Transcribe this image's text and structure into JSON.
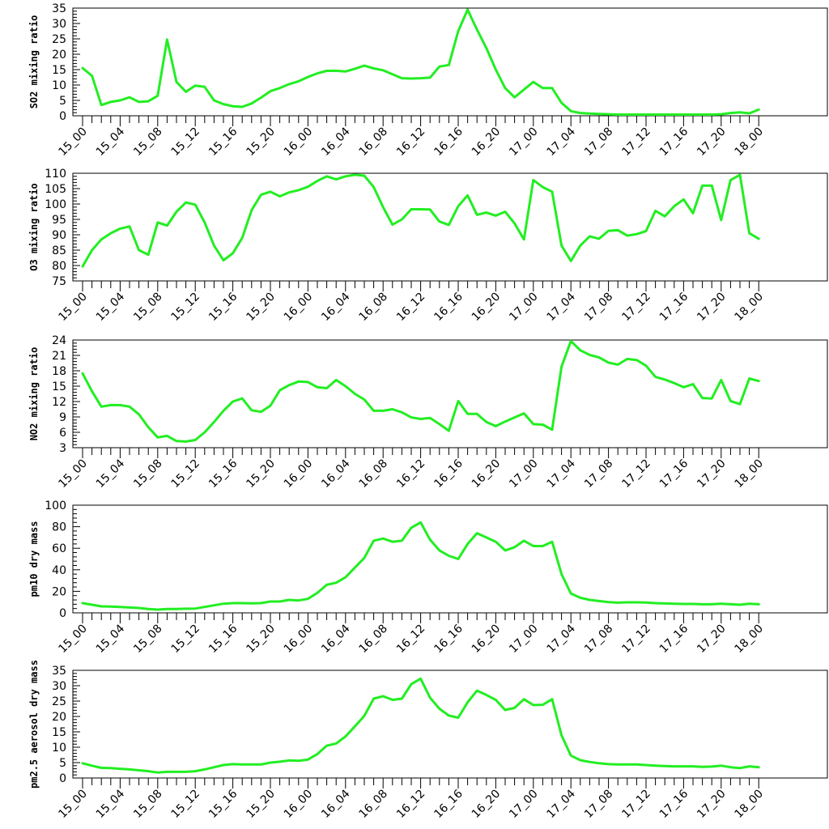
{
  "colors": {
    "series": "#22ee22",
    "axis": "#000000",
    "background": "#ffffff"
  },
  "chart_data": [
    {
      "type": "line",
      "ylabel": "SO2 mixing ratio",
      "ylim": [
        0,
        35
      ],
      "yticks": [
        0,
        5,
        10,
        15,
        20,
        25,
        30,
        35
      ],
      "xtick_labels": [
        "15_00",
        "15_04",
        "15_08",
        "15_12",
        "15_16",
        "15_20",
        "16_00",
        "16_04",
        "16_08",
        "16_12",
        "16_16",
        "16_20",
        "17_00",
        "17_04",
        "17_08",
        "17_12",
        "17_16",
        "17_20",
        "18_00"
      ],
      "values": [
        15.5,
        13,
        3.5,
        4.5,
        5,
        6,
        4.5,
        4.7,
        6.5,
        24.8,
        11,
        7.8,
        9.8,
        9.4,
        5,
        3.8,
        3.1,
        2.9,
        4,
        5.9,
        8,
        9,
        10.3,
        11.2,
        12.6,
        13.8,
        14.6,
        14.6,
        14.4,
        15.3,
        16.3,
        15.4,
        14.8,
        13.5,
        12.2,
        12.1,
        12.2,
        12.4,
        16,
        16.5,
        27.5,
        34.5,
        28,
        22,
        15,
        9,
        6,
        8.5,
        11,
        9,
        9,
        4.2,
        1.5,
        0.9,
        0.7,
        0.6,
        0.5,
        0.4,
        0.4,
        0.4,
        0.4,
        0.4,
        0.4,
        0.4,
        0.4,
        0.4,
        0.4,
        0.4,
        0.5,
        0.9,
        1.1,
        0.8,
        2
      ]
    },
    {
      "type": "line",
      "ylabel": "O3 mixing ratio",
      "ylim": [
        75,
        110
      ],
      "yticks": [
        75,
        80,
        85,
        90,
        95,
        100,
        105,
        110
      ],
      "xtick_labels": [
        "15_00",
        "15_04",
        "15_08",
        "15_12",
        "15_16",
        "15_20",
        "16_00",
        "16_04",
        "16_08",
        "16_12",
        "16_16",
        "16_20",
        "17_00",
        "17_04",
        "17_08",
        "17_12",
        "17_16",
        "17_20",
        "18_00"
      ],
      "values": [
        79.7,
        85,
        88.5,
        90.5,
        92,
        92.7,
        85,
        83.5,
        94,
        93,
        97.5,
        100.5,
        99.8,
        94,
        86.5,
        81.7,
        84,
        89,
        98,
        103,
        104,
        102.5,
        103.8,
        104.5,
        105.6,
        107.5,
        109,
        108,
        109,
        109.5,
        109.2,
        105.5,
        99,
        93.3,
        95,
        98.3,
        98.3,
        98.2,
        94.3,
        93.2,
        99.3,
        102.8,
        96.5,
        97.2,
        96.2,
        97.5,
        93.7,
        88.5,
        107.8,
        105.5,
        104,
        86.5,
        81.5,
        86.5,
        89.5,
        88.7,
        91.3,
        91.5,
        89.7,
        90.2,
        91.2,
        97.8,
        96,
        99.3,
        101.5,
        97,
        106,
        106,
        94.8,
        107.8,
        109.5,
        90.5,
        88.7
      ]
    },
    {
      "type": "line",
      "ylabel": "NO2 mixing ratio",
      "ylim": [
        3,
        24
      ],
      "yticks": [
        3,
        6,
        9,
        12,
        15,
        18,
        21,
        24
      ],
      "xtick_labels": [
        "15_00",
        "15_04",
        "15_08",
        "15_12",
        "15_16",
        "15_20",
        "16_00",
        "16_04",
        "16_08",
        "16_12",
        "16_16",
        "16_20",
        "17_00",
        "17_04",
        "17_08",
        "17_12",
        "17_16",
        "17_20",
        "18_00"
      ],
      "values": [
        17.5,
        14,
        11,
        11.3,
        11.3,
        11,
        9.5,
        7,
        5,
        5.3,
        4.3,
        4.2,
        4.5,
        6,
        8,
        10.2,
        12,
        12.6,
        10.3,
        10,
        11.2,
        14.2,
        15.2,
        15.9,
        15.8,
        14.8,
        14.6,
        16.2,
        15,
        13.5,
        12.4,
        10.2,
        10.2,
        10.5,
        9.9,
        8.9,
        8.6,
        8.8,
        7.6,
        6.3,
        12.1,
        9.6,
        9.6,
        8,
        7.2,
        8.1,
        8.9,
        9.7,
        7.6,
        7.5,
        6.5,
        18.8,
        23.8,
        22,
        21.1,
        20.6,
        19.6,
        19.2,
        20.3,
        20.1,
        19,
        16.8,
        16.3,
        15.6,
        14.8,
        15.4,
        12.7,
        12.6,
        16.2,
        12.1,
        11.5,
        16.5,
        16
      ]
    },
    {
      "type": "line",
      "ylabel": "pm10 dry mass",
      "ylim": [
        0,
        100
      ],
      "yticks": [
        0,
        20,
        40,
        60,
        80,
        100
      ],
      "xtick_labels": [
        "15_00",
        "15_04",
        "15_08",
        "15_12",
        "15_16",
        "15_20",
        "16_00",
        "16_04",
        "16_08",
        "16_12",
        "16_16",
        "16_20",
        "17_00",
        "17_04",
        "17_08",
        "17_12",
        "17_16",
        "17_20",
        "18_00"
      ],
      "values": [
        9,
        7.5,
        6,
        5.8,
        5.5,
        5,
        4.5,
        3.5,
        3,
        3.5,
        3.5,
        3.8,
        4,
        5.5,
        7,
        8.5,
        9,
        9,
        8.8,
        9,
        10.5,
        10.5,
        12,
        11.5,
        13,
        18.5,
        26,
        28,
        33,
        42,
        51,
        67,
        69,
        66,
        67,
        79,
        84,
        68,
        58,
        53,
        50,
        64,
        74,
        70,
        66,
        58,
        61,
        67,
        62,
        62,
        66,
        36,
        18,
        14,
        12,
        11,
        10,
        9.5,
        9.8,
        9.8,
        9.6,
        9,
        8.7,
        8.5,
        8.3,
        8.3,
        8,
        8,
        8.5,
        8,
        7.5,
        8.5,
        8
      ]
    },
    {
      "type": "line",
      "ylabel": "pm2.5 aerosol dry mass",
      "ylim": [
        0,
        35
      ],
      "yticks": [
        0,
        5,
        10,
        15,
        20,
        25,
        30,
        35
      ],
      "xtick_labels": [
        "15_00",
        "15_04",
        "15_08",
        "15_12",
        "15_16",
        "15_20",
        "16_00",
        "16_04",
        "16_08",
        "16_12",
        "16_16",
        "16_20",
        "17_00",
        "17_04",
        "17_08",
        "17_12",
        "17_16",
        "17_20",
        "18_00"
      ],
      "values": [
        4.8,
        4,
        3.3,
        3.2,
        3,
        2.8,
        2.5,
        2.2,
        1.8,
        2,
        2,
        2,
        2.2,
        2.8,
        3.5,
        4.2,
        4.5,
        4.4,
        4.4,
        4.4,
        5,
        5.3,
        5.7,
        5.6,
        6,
        7.8,
        10.5,
        11.2,
        13.5,
        16.8,
        20.2,
        25.8,
        26.6,
        25.4,
        25.8,
        30.5,
        32.3,
        26.1,
        22.5,
        20.3,
        19.6,
        24.6,
        28.4,
        27,
        25.4,
        22.1,
        22.8,
        25.6,
        23.7,
        23.8,
        25.6,
        13.9,
        7.3,
        5.8,
        5.2,
        4.8,
        4.5,
        4.4,
        4.4,
        4.4,
        4.2,
        4,
        3.9,
        3.8,
        3.8,
        3.8,
        3.6,
        3.7,
        4,
        3.5,
        3.2,
        3.8,
        3.5
      ]
    }
  ]
}
